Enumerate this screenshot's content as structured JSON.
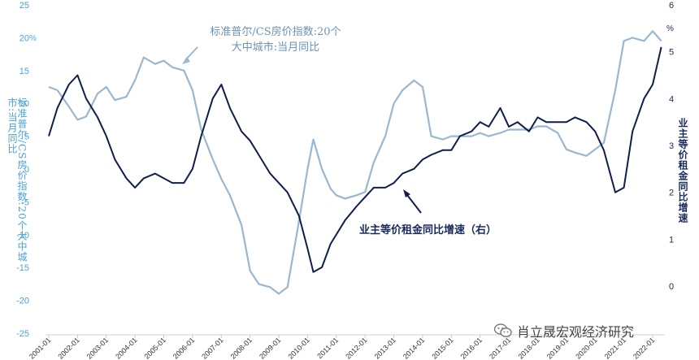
{
  "chart_data": {
    "type": "line",
    "series": [
      {
        "name": "标准普尔/CS房价指数:20个大中城市:当月同比",
        "axis": "left",
        "color": "#9ab7d1",
        "x": [
          2001.0,
          2001.3,
          2001.7,
          2002.0,
          2002.3,
          2002.7,
          2003.0,
          2003.3,
          2003.7,
          2004.0,
          2004.3,
          2004.7,
          2005.0,
          2005.3,
          2005.7,
          2006.0,
          2006.3,
          2006.7,
          2007.0,
          2007.3,
          2007.7,
          2008.0,
          2008.3,
          2008.7,
          2009.0,
          2009.3,
          2009.7,
          2010.0,
          2010.2,
          2010.5,
          2010.8,
          2011.0,
          2011.3,
          2011.7,
          2012.0,
          2012.3,
          2012.7,
          2013.0,
          2013.3,
          2013.7,
          2014.0,
          2014.3,
          2014.7,
          2015.0,
          2015.3,
          2015.7,
          2016.0,
          2016.3,
          2016.7,
          2017.0,
          2017.3,
          2017.7,
          2018.0,
          2018.3,
          2018.7,
          2019.0,
          2019.3,
          2019.7,
          2020.0,
          2020.3,
          2020.7,
          2021.0,
          2021.3,
          2021.7,
          2022.0,
          2022.3
        ],
        "values": [
          12.5,
          12.0,
          9.5,
          7.5,
          8.0,
          11.5,
          12.5,
          10.5,
          11.0,
          13.5,
          17.0,
          16.0,
          16.5,
          15.5,
          15.0,
          12.0,
          6.0,
          1.5,
          -1.5,
          -4.0,
          -8.5,
          -15.5,
          -17.5,
          -18.0,
          -19.0,
          -18.0,
          -8.0,
          0.0,
          4.5,
          0.0,
          -3.0,
          -4.0,
          -4.5,
          -4.0,
          -3.5,
          1.0,
          5.0,
          10.0,
          12.0,
          13.5,
          12.5,
          5.0,
          4.5,
          5.0,
          5.0,
          5.0,
          5.5,
          5.0,
          5.5,
          6.0,
          6.0,
          6.0,
          6.5,
          6.5,
          5.5,
          3.0,
          2.5,
          2.0,
          3.0,
          4.0,
          12.0,
          19.5,
          20.0,
          19.5,
          21.0,
          19.5
        ]
      },
      {
        "name": "业主等价租金同比增速（右）",
        "axis": "right",
        "color": "#0f1e4b",
        "x": [
          2001.0,
          2001.3,
          2001.7,
          2002.0,
          2002.3,
          2002.7,
          2003.0,
          2003.3,
          2003.7,
          2004.0,
          2004.3,
          2004.7,
          2005.0,
          2005.3,
          2005.7,
          2006.0,
          2006.3,
          2006.7,
          2007.0,
          2007.3,
          2007.7,
          2008.0,
          2008.3,
          2008.7,
          2009.0,
          2009.3,
          2009.7,
          2010.0,
          2010.2,
          2010.5,
          2010.8,
          2011.0,
          2011.3,
          2011.7,
          2012.0,
          2012.3,
          2012.7,
          2013.0,
          2013.3,
          2013.7,
          2014.0,
          2014.3,
          2014.7,
          2015.0,
          2015.3,
          2015.7,
          2016.0,
          2016.3,
          2016.7,
          2017.0,
          2017.3,
          2017.7,
          2018.0,
          2018.3,
          2018.7,
          2019.0,
          2019.3,
          2019.7,
          2020.0,
          2020.3,
          2020.7,
          2021.0,
          2021.3,
          2021.7,
          2022.0,
          2022.3
        ],
        "values": [
          3.2,
          3.8,
          4.3,
          4.5,
          4.0,
          3.6,
          3.2,
          2.7,
          2.3,
          2.1,
          2.3,
          2.4,
          2.3,
          2.2,
          2.2,
          2.5,
          3.2,
          4.0,
          4.3,
          3.8,
          3.3,
          3.1,
          2.8,
          2.4,
          2.2,
          2.0,
          1.5,
          0.8,
          0.3,
          0.4,
          0.9,
          1.1,
          1.4,
          1.7,
          1.9,
          2.1,
          2.1,
          2.2,
          2.4,
          2.5,
          2.7,
          2.8,
          2.9,
          2.9,
          3.2,
          3.3,
          3.5,
          3.4,
          3.8,
          3.4,
          3.5,
          3.3,
          3.6,
          3.5,
          3.5,
          3.5,
          3.6,
          3.5,
          3.3,
          2.9,
          2.0,
          2.1,
          3.3,
          4.0,
          4.3,
          5.1
        ]
      }
    ],
    "y_left": {
      "ticks": [
        25,
        20,
        15,
        10,
        5,
        0,
        -5,
        -10,
        -15,
        -20,
        -25
      ],
      "unit": "%",
      "title": "标准普尔/CS房价指数:20个大中城市:当月同比"
    },
    "y_right": {
      "ticks": [
        6,
        5,
        4,
        3,
        2,
        1,
        0
      ],
      "unit": "%",
      "title": "业主等价租金同比增速"
    },
    "x_ticks": [
      "2001-01",
      "2002-01",
      "2003-01",
      "2004-01",
      "2005-01",
      "2006-01",
      "2007-01",
      "2008-01",
      "2009-01",
      "2010-01",
      "2011-01",
      "2012-01",
      "2013-01",
      "2014-01",
      "2015-01",
      "2016-01",
      "2017-01",
      "2018-01",
      "2019-01",
      "2020-01",
      "2021-01",
      "2022-01"
    ],
    "annotations": [
      {
        "text_line1": "标准普尔/CS房价指数:20个",
        "text_line2": "大中城市:当月同比"
      },
      {
        "text": "业主等价租金同比增速（右）"
      }
    ],
    "grid": false
  },
  "watermark": {
    "text": "肖立晟宏观经济研究",
    "icon": "wechat-icon"
  }
}
